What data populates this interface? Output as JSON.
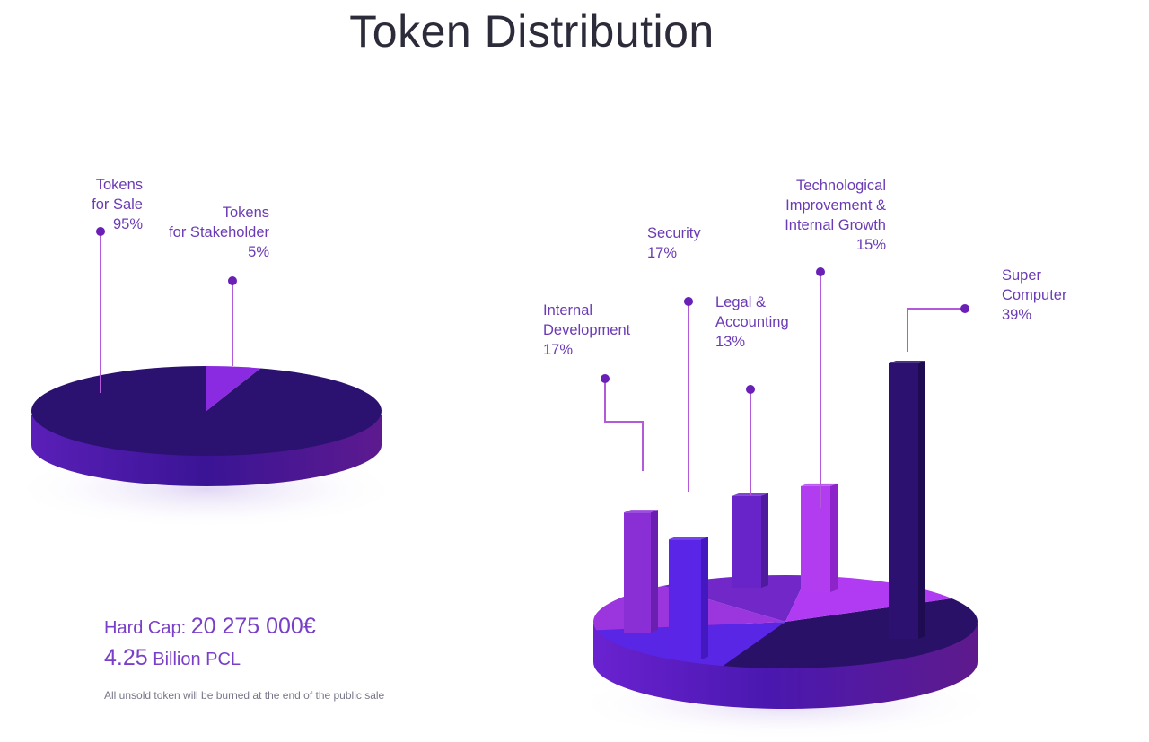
{
  "title": "Token Distribution",
  "colors": {
    "accent": "#7a3fc8",
    "dark_slice": "#2b1270",
    "text": "#6b3bb5"
  },
  "chart_data": [
    {
      "type": "pie",
      "slices": [
        {
          "label": "Tokens for Sale",
          "label_lines": [
            "Tokens",
            "for Sale"
          ],
          "value_label": "95%",
          "value": 95
        },
        {
          "label": "Tokens for Stakeholder",
          "label_lines": [
            "Tokens",
            "for Stakeholder"
          ],
          "value_label": "5%",
          "value": 5
        }
      ]
    },
    {
      "type": "bar",
      "categories": [
        "Internal Development",
        "Security",
        "Legal & Accounting",
        "Technological Improvement & Internal Growth",
        "Super Computer"
      ],
      "label_lines": [
        [
          "Internal",
          "Development"
        ],
        [
          "Security"
        ],
        [
          "Legal &",
          "Accounting"
        ],
        [
          "Technological",
          "Improvement &",
          "Internal Growth"
        ],
        [
          "Super",
          "Computer"
        ]
      ],
      "value_labels": [
        "17%",
        "17%",
        "13%",
        "15%",
        "39%"
      ],
      "values": [
        17,
        17,
        13,
        15,
        39
      ]
    }
  ],
  "hard_cap": {
    "label": "Hard Cap:",
    "amount": "20 275 000€",
    "tokens_amount": "4.25",
    "tokens_unit": "Billion PCL"
  },
  "note": "All unsold token will be burned at the end of the public sale"
}
